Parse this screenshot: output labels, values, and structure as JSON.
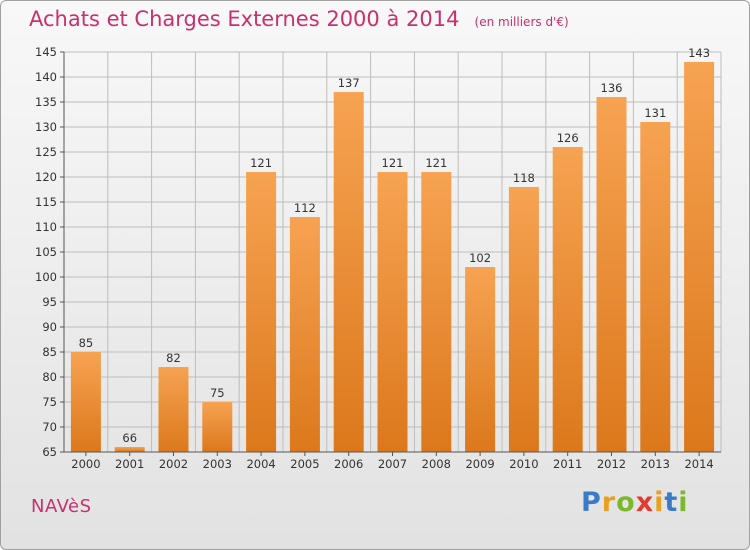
{
  "title": "Achats et Charges Externes 2000 à 2014",
  "subtitle": "(en milliers d'€)",
  "town": "NAVèS",
  "logo": {
    "text": "Proxiti",
    "colors": [
      "#3a7bc8",
      "#e8a020",
      "#7cb82e",
      "#e23b2e",
      "#e8a020",
      "#3a7bc8",
      "#7cb82e"
    ]
  },
  "colors": {
    "bar_top": "#f6a352",
    "bar_bottom": "#dc781c",
    "title": "#c9306e",
    "grid": "#bdbdbd"
  },
  "chart_data": {
    "type": "bar",
    "title": "Achats et Charges Externes 2000 à 2014",
    "subtitle": "(en milliers d'€)",
    "xlabel": "",
    "ylabel": "",
    "categories": [
      "2000",
      "2001",
      "2002",
      "2003",
      "2004",
      "2005",
      "2006",
      "2007",
      "2008",
      "2009",
      "2010",
      "2011",
      "2012",
      "2013",
      "2014"
    ],
    "values": [
      85,
      66,
      82,
      75,
      121,
      112,
      137,
      121,
      121,
      102,
      118,
      126,
      136,
      131,
      143
    ],
    "ylim": [
      65,
      145
    ],
    "yticks": [
      65,
      70,
      75,
      80,
      85,
      90,
      95,
      100,
      105,
      110,
      115,
      120,
      125,
      130,
      135,
      140,
      145
    ],
    "grid": true,
    "data_labels": true
  }
}
